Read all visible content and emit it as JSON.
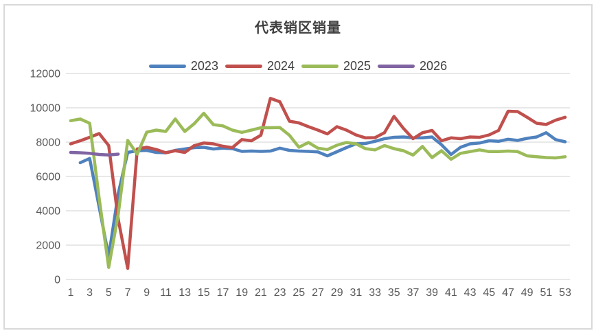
{
  "chart_data": {
    "type": "line",
    "title": "代表销区销量",
    "xlabel": "",
    "ylabel": "",
    "x_unit": "week-of-year",
    "x": [
      1,
      2,
      3,
      4,
      5,
      6,
      7,
      8,
      9,
      10,
      11,
      12,
      13,
      14,
      15,
      16,
      17,
      18,
      19,
      20,
      21,
      22,
      23,
      24,
      25,
      26,
      27,
      28,
      29,
      30,
      31,
      32,
      33,
      34,
      35,
      36,
      37,
      38,
      39,
      40,
      41,
      42,
      43,
      44,
      45,
      46,
      47,
      48,
      49,
      50,
      51,
      52,
      53
    ],
    "x_tick_labels": [
      1,
      3,
      5,
      7,
      9,
      11,
      13,
      15,
      17,
      19,
      21,
      23,
      25,
      27,
      29,
      31,
      33,
      35,
      37,
      39,
      41,
      43,
      45,
      47,
      49,
      51,
      53
    ],
    "ylim": [
      0,
      12000
    ],
    "y_ticks": [
      0,
      2000,
      4000,
      6000,
      8000,
      10000,
      12000
    ],
    "grid": "horizontal",
    "legend_position": "top",
    "series": [
      {
        "name": "2023",
        "color": "#4F81BD",
        "values": [
          null,
          6800,
          7050,
          4200,
          1350,
          5000,
          7400,
          7500,
          7520,
          7400,
          7380,
          7520,
          7600,
          7680,
          7700,
          7600,
          7650,
          7620,
          7460,
          7480,
          7460,
          7480,
          7650,
          7520,
          7480,
          7460,
          7430,
          7200,
          7440,
          7680,
          7900,
          7920,
          8050,
          8200,
          8280,
          8300,
          8250,
          8250,
          8300,
          7850,
          7280,
          7700,
          7900,
          7950,
          8080,
          8050,
          8170,
          8100,
          8220,
          8300,
          8550,
          8150,
          8020
        ]
      },
      {
        "name": "2024",
        "color": "#C0504D",
        "values": [
          7900,
          8080,
          8280,
          8500,
          7800,
          3500,
          650,
          7600,
          7700,
          7570,
          7380,
          7500,
          7400,
          7800,
          7950,
          7900,
          7760,
          7680,
          8150,
          8080,
          8400,
          10550,
          10350,
          9220,
          9120,
          8900,
          8700,
          8480,
          8900,
          8700,
          8420,
          8250,
          8260,
          8550,
          9500,
          8800,
          8200,
          8550,
          8680,
          8080,
          8250,
          8200,
          8300,
          8280,
          8420,
          8680,
          9800,
          9780,
          9450,
          9100,
          9030,
          9280,
          9450
        ]
      },
      {
        "name": "2025",
        "color": "#9BBB59",
        "values": [
          9250,
          9350,
          9100,
          4700,
          700,
          3800,
          8100,
          7300,
          8580,
          8700,
          8620,
          9350,
          8620,
          9080,
          9680,
          9020,
          8950,
          8700,
          8570,
          8700,
          8840,
          8840,
          8850,
          8400,
          7700,
          7980,
          7650,
          7570,
          7820,
          7980,
          7900,
          7620,
          7550,
          7800,
          7620,
          7500,
          7250,
          7750,
          7100,
          7500,
          7000,
          7350,
          7450,
          7550,
          7450,
          7450,
          7480,
          7450,
          7200,
          7150,
          7100,
          7080,
          7150
        ]
      },
      {
        "name": "2026",
        "color": "#8064A2",
        "values": [
          7400,
          7380,
          7350,
          7280,
          7250,
          7300,
          null,
          null,
          null,
          null,
          null,
          null,
          null,
          null,
          null,
          null,
          null,
          null,
          null,
          null,
          null,
          null,
          null,
          null,
          null,
          null,
          null,
          null,
          null,
          null,
          null,
          null,
          null,
          null,
          null,
          null,
          null,
          null,
          null,
          null,
          null,
          null,
          null,
          null,
          null,
          null,
          null,
          null,
          null,
          null,
          null,
          null,
          null
        ]
      }
    ],
    "theme": {
      "background": "#FFFFFF",
      "border": "#D9D9D9",
      "gridline": "#D9D9D9",
      "tick_text": "#595959",
      "title_text": "#3F3F3F",
      "legend_text": "#404040"
    }
  }
}
